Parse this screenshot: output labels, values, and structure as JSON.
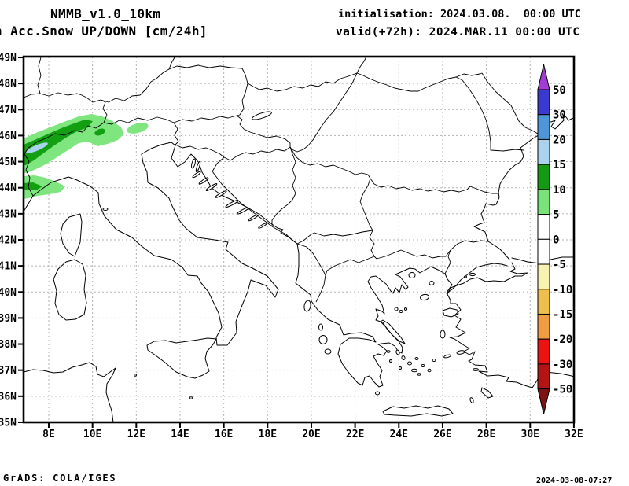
{
  "header": {
    "model_title": "NMMB_v1.0_10km",
    "product_title": "n Acc.Snow UP/DOWN [cm/24h]",
    "init_line": "initialisation: 2024.03.08.  00:00 UTC",
    "valid_line": "valid(+72h): 2024.MAR.11 00:00 UTC"
  },
  "map": {
    "lat_tick_labels": [
      "49N",
      "48N",
      "47N",
      "46N",
      "45N",
      "44N",
      "43N",
      "42N",
      "41N",
      "40N",
      "39N",
      "38N",
      "37N",
      "36N",
      "35N"
    ],
    "lon_tick_labels": [
      "8E",
      "10E",
      "12E",
      "14E",
      "16E",
      "18E",
      "20E",
      "22E",
      "24E",
      "26E",
      "28E",
      "30E",
      "32E"
    ],
    "grid_color": "#b3b3b3"
  },
  "colorbar": {
    "labels": [
      "50",
      "30",
      "20",
      "15",
      "10",
      "5",
      "0",
      "-5",
      "-10",
      "-15",
      "-20",
      "-30",
      "-50"
    ],
    "segment_colors": [
      "#3a3ad1",
      "#4e96d8",
      "#abd3f0",
      "#149a14",
      "#79e379",
      "#ffffff",
      "#ffffff",
      "#f8f2b2",
      "#edc04e",
      "#f09c42",
      "#ee1313",
      "#b31414"
    ],
    "arrow_top_color": "#a33bd8",
    "arrow_bottom_color": "#7e1212"
  },
  "snow_shading": {
    "light_green": "#7fe67f",
    "dark_green": "#12a012",
    "light_blue": "#abd3f0"
  },
  "footer": {
    "credit": "GrADS: COLA/IGES",
    "timestamp": "2024-03-08-07:27"
  }
}
